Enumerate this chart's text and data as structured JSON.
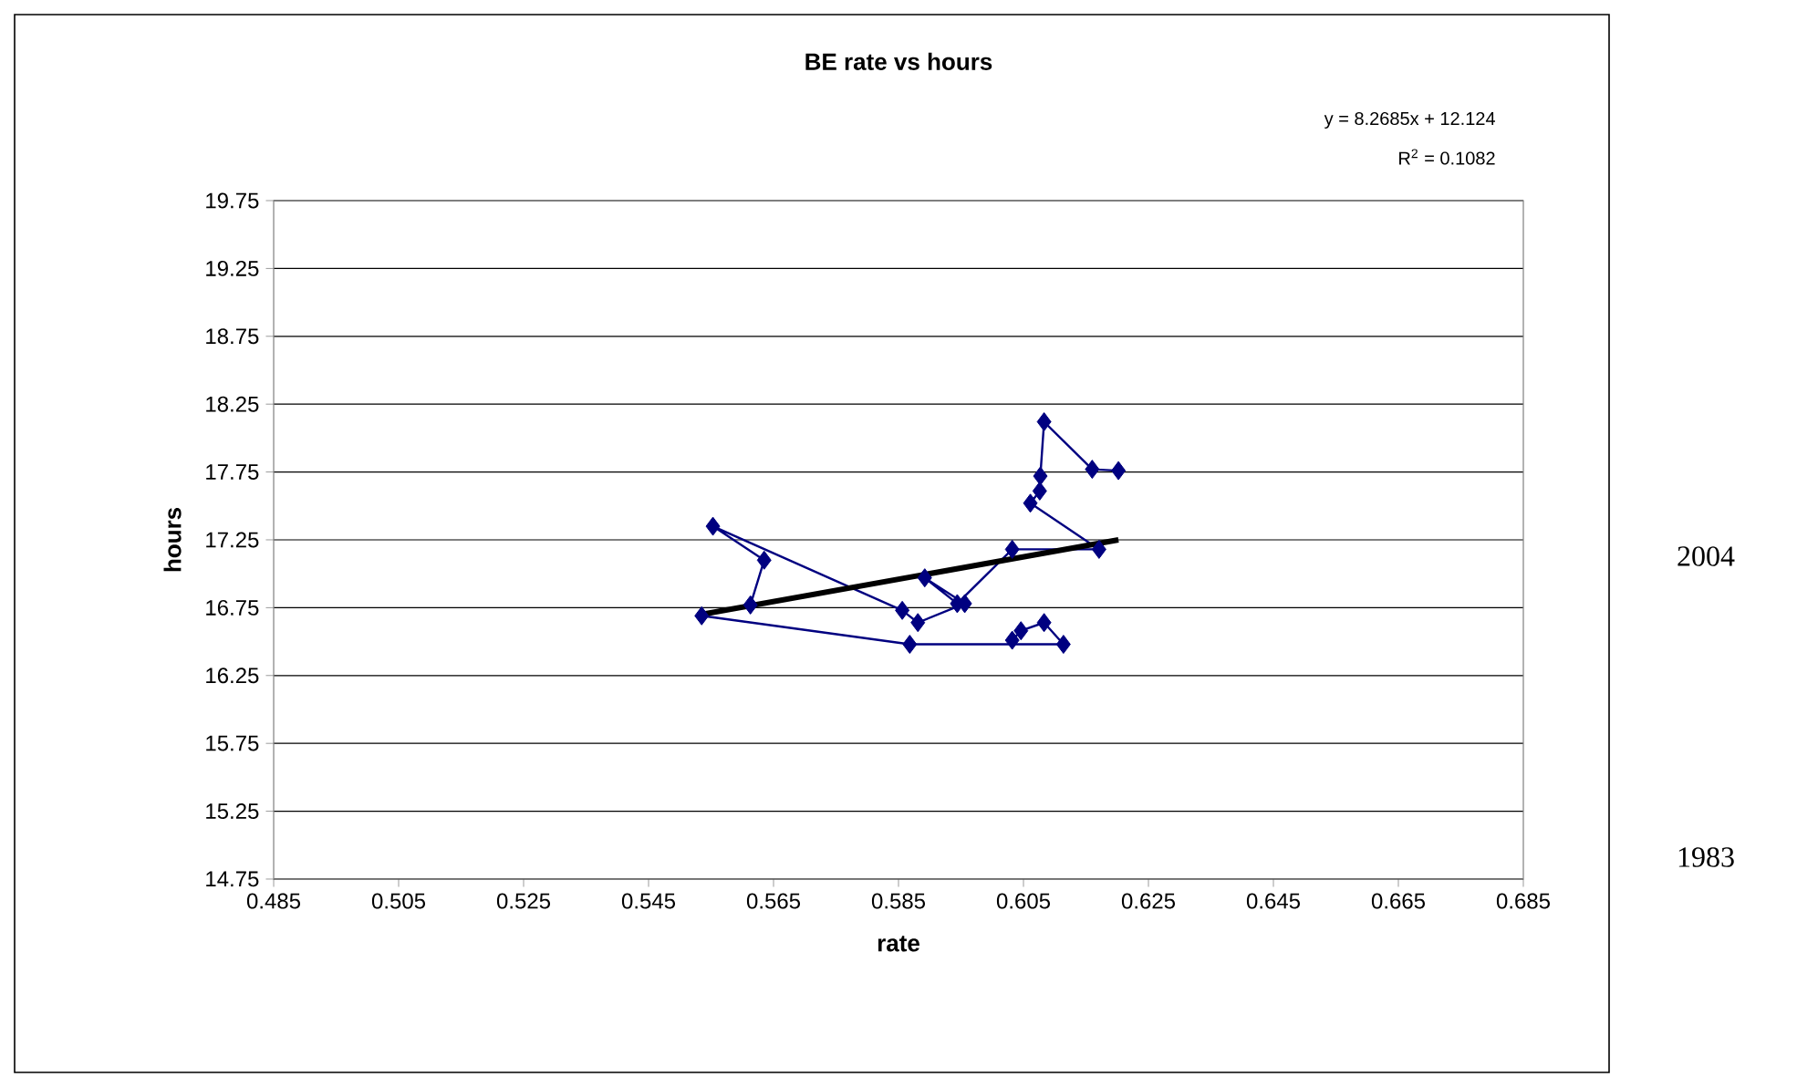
{
  "chart_data": {
    "type": "line",
    "title": "BE rate vs hours",
    "xlabel": "rate",
    "ylabel": "hours",
    "annotations": [
      "y = 8.2685x + 12.124",
      "R$^{2}$ = 0.1082",
      "2004",
      "1983"
    ],
    "xlim": [
      0.485,
      0.685
    ],
    "xticks": [
      0.485,
      0.505,
      0.525,
      0.545,
      0.565,
      0.585,
      0.605,
      0.625,
      0.645,
      0.665,
      0.685
    ],
    "ylim": [
      14.75,
      19.75
    ],
    "yticks": [
      14.75,
      15.25,
      15.75,
      16.25,
      16.75,
      17.25,
      17.75,
      18.25,
      18.75,
      19.25,
      19.75
    ],
    "grid": "y",
    "marker": "diamond",
    "line_style": "solid",
    "series": [
      {
        "color": "#000080",
        "x": [
          0.6202,
          0.616,
          0.6083,
          0.6077,
          0.6076,
          0.6061,
          0.6171,
          0.6032,
          0.5944,
          0.5892,
          0.5956,
          0.5881,
          0.5856,
          0.5553,
          0.5635,
          0.5613,
          0.5535,
          0.5868,
          0.6114,
          0.6083,
          0.6046,
          0.6032
        ],
        "values": [
          17.76,
          17.77,
          18.12,
          17.72,
          17.61,
          17.52,
          17.18,
          17.18,
          16.78,
          16.97,
          16.78,
          16.64,
          16.73,
          17.35,
          17.1,
          16.77,
          16.69,
          16.48,
          16.48,
          16.64,
          16.58,
          16.51
        ]
      },
      {
        "type": "line",
        "color": "#000000",
        "marker": "none",
        "x": [
          0.5535,
          0.6202
        ],
        "values": [
          16.7,
          17.25
        ]
      }
    ]
  }
}
